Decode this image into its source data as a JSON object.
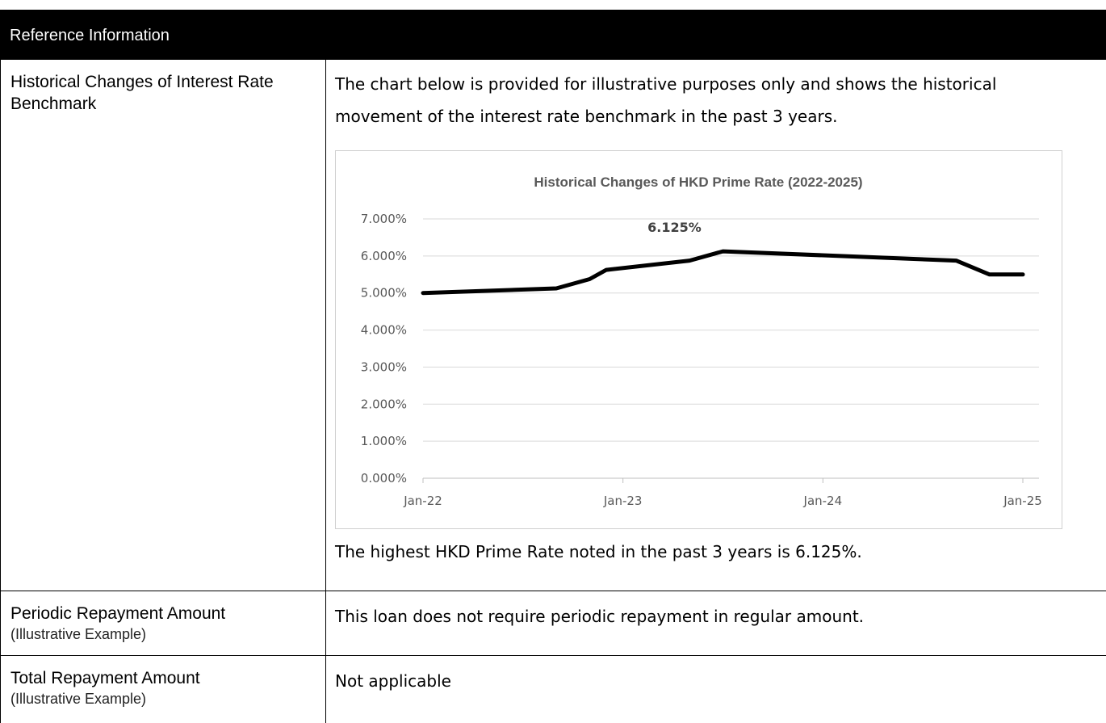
{
  "header": {
    "title": "Reference Information"
  },
  "rows": [
    {
      "label": "Historical Changes of Interest Rate Benchmark",
      "sublabel": "",
      "intro": "The chart below is provided for illustrative purposes only and shows the historical movement of the interest rate benchmark in the past 3 years.",
      "note": "The highest HKD Prime Rate noted in the past 3 years is 6.125%."
    },
    {
      "label": "Periodic Repayment Amount",
      "sublabel": "(Illustrative Example)",
      "text": "This loan does not require periodic repayment in regular amount."
    },
    {
      "label": "Total Repayment Amount",
      "sublabel": "(Illustrative Example)",
      "text": "Not applicable"
    }
  ],
  "colors": {
    "header_bg": "#000000",
    "header_text": "#ffffff",
    "line": "#000000",
    "grid": "#d9d9d9",
    "axis_text": "#595959"
  },
  "chart_data": {
    "type": "line",
    "title": "Historical Changes of HKD Prime Rate (2022-2025)",
    "xlabel": "",
    "ylabel": "",
    "ylim": [
      0,
      7
    ],
    "yticks": [
      "0.000%",
      "1.000%",
      "2.000%",
      "3.000%",
      "4.000%",
      "5.000%",
      "6.000%",
      "7.000%"
    ],
    "xlim": [
      "2022-01",
      "2025-01"
    ],
    "xticks": [
      {
        "date": "2022-01",
        "label": "Jan-22"
      },
      {
        "date": "2023-01",
        "label": "Jan-23"
      },
      {
        "date": "2024-01",
        "label": "Jan-24"
      },
      {
        "date": "2025-01",
        "label": "Jan-25"
      }
    ],
    "grid": true,
    "series": [
      {
        "name": "",
        "points": [
          {
            "date": "2022-01",
            "value": 5.0
          },
          {
            "date": "2022-09",
            "value": 5.125
          },
          {
            "date": "2022-11",
            "value": 5.375
          },
          {
            "date": "2022-12",
            "value": 5.625
          },
          {
            "date": "2023-05",
            "value": 5.875
          },
          {
            "date": "2023-07",
            "value": 6.125
          },
          {
            "date": "2024-09",
            "value": 5.875
          },
          {
            "date": "2024-11",
            "value": 5.5
          },
          {
            "date": "2025-01",
            "value": 5.5
          }
        ]
      }
    ],
    "annotations": [
      {
        "date": "2023-07",
        "value": 6.125,
        "text": "6.125%"
      }
    ]
  }
}
